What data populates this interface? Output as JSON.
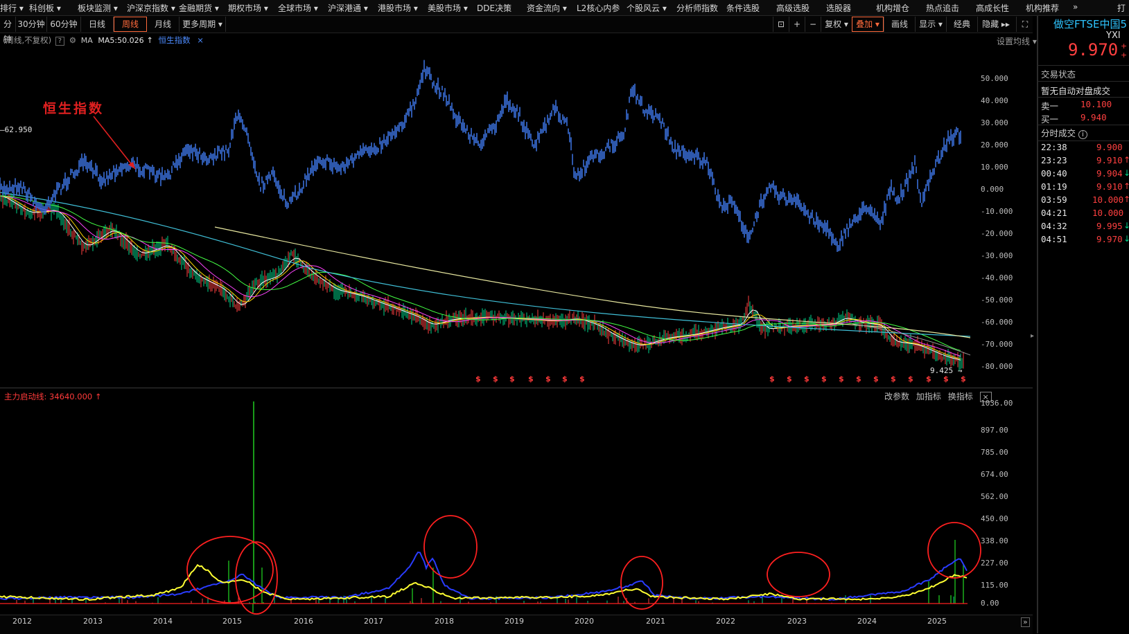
{
  "top_nav": [
    "排行 ▾",
    "科创板 ▾",
    "板块监测 ▾",
    "沪深京指数 ▾",
    "金融期货 ▾",
    "期权市场 ▾",
    "全球市场 ▾",
    "沪深港通 ▾",
    "港股市场 ▾",
    "美股市场 ▾",
    "DDE决策",
    "资金流向 ▾",
    "L2核心内参",
    "个股风云 ▾",
    "分析师指数",
    "条件选股",
    "高级选股",
    "选股器",
    "机构增仓",
    "热点追击",
    "高成长性",
    "机构推荐",
    "»",
    "打"
  ],
  "period_tabs": [
    "分钟",
    "30分钟",
    "60分钟",
    "日线",
    "周线",
    "月线",
    "更多周期 ▾"
  ],
  "active_period": "周线",
  "right_tools": [
    "复权 ▾",
    "叠加 ▾",
    "画线",
    "显示 ▾",
    "经典",
    "隐藏 ▸▸"
  ],
  "active_tool": "叠加 ▾",
  "info": {
    "mode": "(周线,不复权)",
    "help": "?",
    "ma_prefix": "MA",
    "ma5": "MA5:50.026",
    "arrow": "↑",
    "overlay_name": "恒生指数",
    "close": "×",
    "set_ma": "设置均线 ▾"
  },
  "annotation": "恒生指数",
  "left_marker": "62.950",
  "main_y_ticks": [
    "50.000",
    "40.000",
    "30.000",
    "20.000",
    "10.000",
    "0.000",
    "-10.000",
    "-20.000",
    "-30.000",
    "-40.000",
    "-50.000",
    "-60.000",
    "-70.000",
    "-80.000"
  ],
  "low_marker": "9.425",
  "dollar_sign": "$",
  "sub_indicator": {
    "label": "主力启动线: 34640.000",
    "arrow": "↑",
    "buttons": [
      "改参数",
      "加指标",
      "换指标"
    ],
    "close": "×",
    "y_ticks": [
      "1036.00",
      "897.00",
      "785.00",
      "674.00",
      "562.00",
      "450.00",
      "338.00",
      "227.00",
      "115.00",
      "0.00"
    ]
  },
  "x_years": [
    "2012",
    "2013",
    "2014",
    "2015",
    "2016",
    "2017",
    "2018",
    "2019",
    "2020",
    "2021",
    "2022",
    "2023",
    "2024",
    "2025"
  ],
  "quote": {
    "name": "做空FTSE中国5",
    "code": "YXI",
    "price": "9.970",
    "status_label": "交易状态",
    "status_value": "暂无自动对盘成交",
    "sell1_label": "卖一",
    "sell1_value": "10.100",
    "buy1_label": "买一",
    "buy1_value": "9.940",
    "trades_label": "分时成交",
    "trades": [
      {
        "time": "22:38",
        "price": "9.900",
        "dir": ""
      },
      {
        "time": "23:23",
        "price": "9.910",
        "dir": "↑"
      },
      {
        "time": "00:40",
        "price": "9.904",
        "dir": "↓"
      },
      {
        "time": "01:19",
        "price": "9.910",
        "dir": "↑"
      },
      {
        "time": "03:59",
        "price": "10.000",
        "dir": "↑"
      },
      {
        "time": "04:21",
        "price": "10.000",
        "dir": ""
      },
      {
        "time": "04:32",
        "price": "9.995",
        "dir": "↓"
      },
      {
        "time": "04:51",
        "price": "9.970",
        "dir": "↓"
      }
    ]
  },
  "colors": {
    "up": "#ff4040",
    "down": "#00d48a",
    "accent": "#ff6a3c",
    "hsi_line": "#3a6fd8",
    "quote_name": "#2ec4ff"
  }
}
